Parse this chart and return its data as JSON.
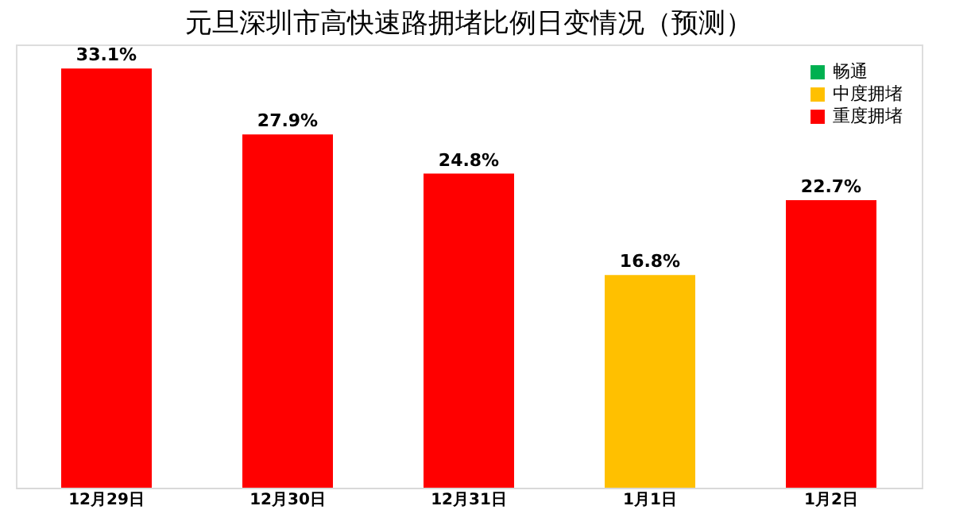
{
  "chart_data": {
    "type": "bar",
    "title": "元旦深圳市高快速路拥堵比例日变情况（预测）",
    "categories": [
      "12月29日",
      "12月30日",
      "12月31日",
      "1月1日",
      "1月2日"
    ],
    "legend": "top right",
    "grid": false,
    "series": [
      {
        "name": "畅通",
        "color": "#00b050",
        "values": [
          null,
          null,
          null,
          null,
          null
        ]
      },
      {
        "name": "中度拥堵",
        "color": "#ffc000",
        "values": [
          null,
          null,
          null,
          16.8,
          null
        ],
        "value_labels": [
          null,
          null,
          null,
          "16.8%",
          null
        ]
      },
      {
        "name": "重度拥堵",
        "color": "#ff0000",
        "values": [
          33.1,
          27.9,
          24.8,
          null,
          22.7
        ],
        "value_labels": [
          "33.1%",
          "27.9%",
          "24.8%",
          null,
          "22.7%"
        ]
      }
    ]
  }
}
